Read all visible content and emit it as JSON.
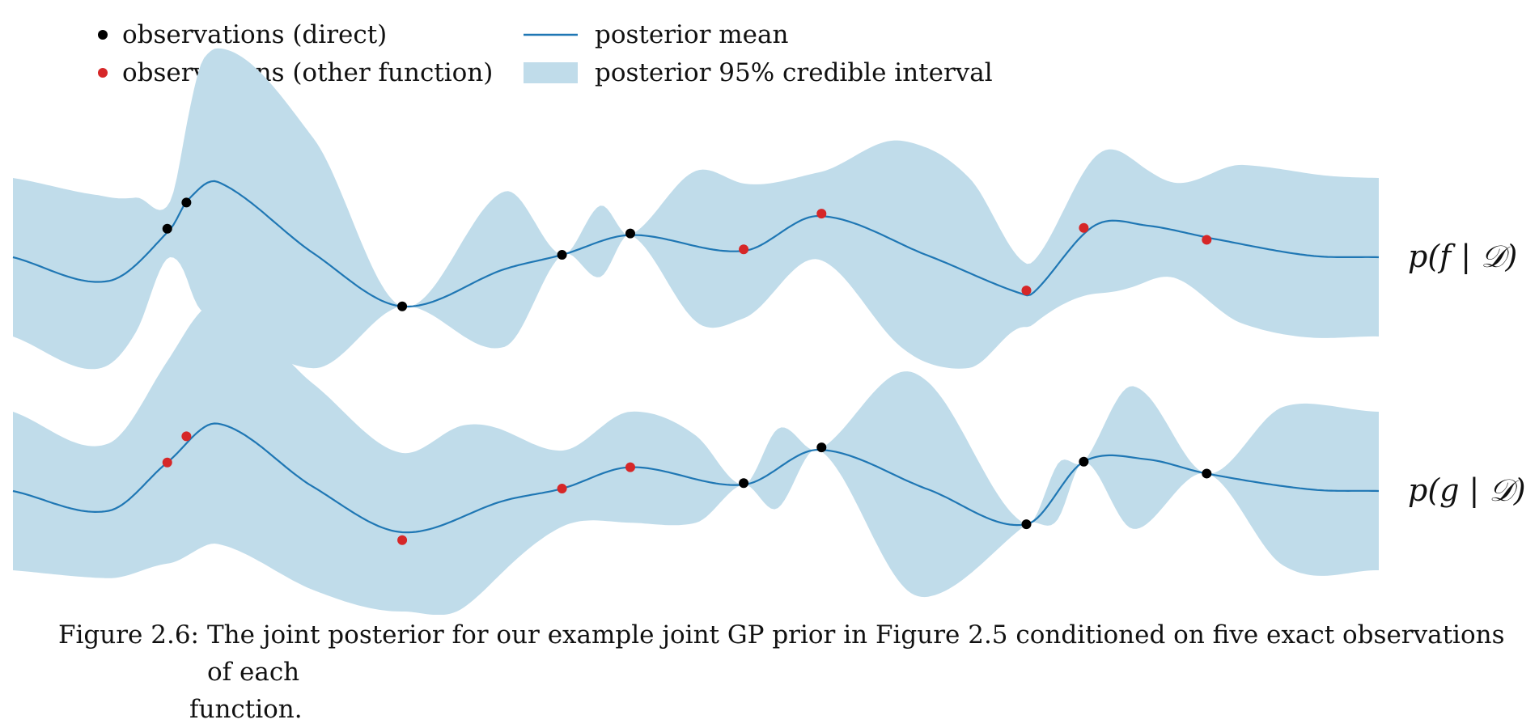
{
  "legend": {
    "obs_direct": "observations (direct)",
    "obs_other": "observations (other function)",
    "mean": "posterior mean",
    "interval": "posterior 95% credible interval"
  },
  "colors": {
    "mean": "#1f77b4",
    "band": "#c0dcea",
    "obs_direct": "#000000",
    "obs_other": "#d62728"
  },
  "caption": {
    "number": "Figure 2.6:",
    "text_line1": "The joint posterior for our example joint GP prior in Figure 2.5 conditioned on five exact observations of each",
    "text_line2": "function."
  },
  "chart_data": [
    {
      "type": "line",
      "label": "p(f | 𝒟)",
      "xlim": [
        0,
        1
      ],
      "mean": [
        [
          0.0,
          0.0
        ],
        [
          0.07,
          -0.3
        ],
        [
          0.115,
          0.35
        ],
        [
          0.128,
          0.72
        ],
        [
          0.15,
          0.95
        ],
        [
          0.22,
          0.05
        ],
        [
          0.285,
          -0.62
        ],
        [
          0.36,
          -0.15
        ],
        [
          0.402,
          0.03
        ],
        [
          0.452,
          0.28
        ],
        [
          0.535,
          0.08
        ],
        [
          0.59,
          0.52
        ],
        [
          0.67,
          0.02
        ],
        [
          0.742,
          -0.48
        ],
        [
          0.75,
          -0.4
        ],
        [
          0.792,
          0.4
        ],
        [
          0.83,
          0.4
        ],
        [
          0.88,
          0.23
        ],
        [
          0.95,
          0.02
        ],
        [
          1.0,
          0.0
        ]
      ],
      "band_half_width": [
        [
          0.0,
          1.0
        ],
        [
          0.06,
          1.1
        ],
        [
          0.09,
          0.85
        ],
        [
          0.115,
          0.35
        ],
        [
          0.14,
          1.6
        ],
        [
          0.22,
          1.45
        ],
        [
          0.285,
          0.0
        ],
        [
          0.36,
          0.98
        ],
        [
          0.402,
          0.0
        ],
        [
          0.43,
          0.45
        ],
        [
          0.452,
          0.0
        ],
        [
          0.5,
          0.95
        ],
        [
          0.535,
          0.85
        ],
        [
          0.59,
          0.55
        ],
        [
          0.65,
          1.3
        ],
        [
          0.7,
          1.2
        ],
        [
          0.742,
          0.4
        ],
        [
          0.8,
          0.9
        ],
        [
          0.85,
          0.6
        ],
        [
          0.9,
          1.0
        ],
        [
          1.0,
          1.0
        ]
      ],
      "observations_direct": [
        [
          0.113,
          0.36
        ],
        [
          0.127,
          0.69
        ],
        [
          0.285,
          -0.62
        ],
        [
          0.402,
          0.03
        ],
        [
          0.452,
          0.3
        ]
      ],
      "observations_other": [
        [
          0.535,
          0.1
        ],
        [
          0.592,
          0.55
        ],
        [
          0.742,
          -0.42
        ],
        [
          0.784,
          0.37
        ],
        [
          0.874,
          0.22
        ]
      ]
    },
    {
      "type": "line",
      "label": "p(g | 𝒟)",
      "xlim": [
        0,
        1
      ],
      "mean": [
        [
          0.0,
          0.0
        ],
        [
          0.07,
          -0.25
        ],
        [
          0.113,
          0.36
        ],
        [
          0.15,
          0.85
        ],
        [
          0.22,
          0.05
        ],
        [
          0.285,
          -0.52
        ],
        [
          0.36,
          -0.12
        ],
        [
          0.402,
          0.03
        ],
        [
          0.452,
          0.3
        ],
        [
          0.535,
          0.08
        ],
        [
          0.59,
          0.52
        ],
        [
          0.67,
          0.02
        ],
        [
          0.742,
          -0.42
        ],
        [
          0.784,
          0.37
        ],
        [
          0.83,
          0.4
        ],
        [
          0.874,
          0.22
        ],
        [
          0.95,
          0.02
        ],
        [
          1.0,
          0.0
        ]
      ],
      "band_half_width": [
        [
          0.0,
          1.0
        ],
        [
          0.07,
          0.85
        ],
        [
          0.14,
          1.5
        ],
        [
          0.22,
          1.3
        ],
        [
          0.285,
          1.0
        ],
        [
          0.33,
          1.15
        ],
        [
          0.402,
          0.48
        ],
        [
          0.452,
          0.7
        ],
        [
          0.5,
          0.55
        ],
        [
          0.535,
          0.0
        ],
        [
          0.56,
          0.5
        ],
        [
          0.59,
          0.0
        ],
        [
          0.66,
          1.4
        ],
        [
          0.742,
          0.0
        ],
        [
          0.765,
          0.35
        ],
        [
          0.784,
          0.0
        ],
        [
          0.82,
          0.9
        ],
        [
          0.874,
          0.0
        ],
        [
          0.93,
          1.0
        ],
        [
          1.0,
          1.0
        ]
      ],
      "observations_direct": [
        [
          0.535,
          0.1
        ],
        [
          0.592,
          0.55
        ],
        [
          0.742,
          -0.42
        ],
        [
          0.784,
          0.37
        ],
        [
          0.874,
          0.22
        ]
      ],
      "observations_other": [
        [
          0.113,
          0.36
        ],
        [
          0.127,
          0.69
        ],
        [
          0.285,
          -0.62
        ],
        [
          0.402,
          0.03
        ],
        [
          0.452,
          0.3
        ]
      ]
    }
  ]
}
